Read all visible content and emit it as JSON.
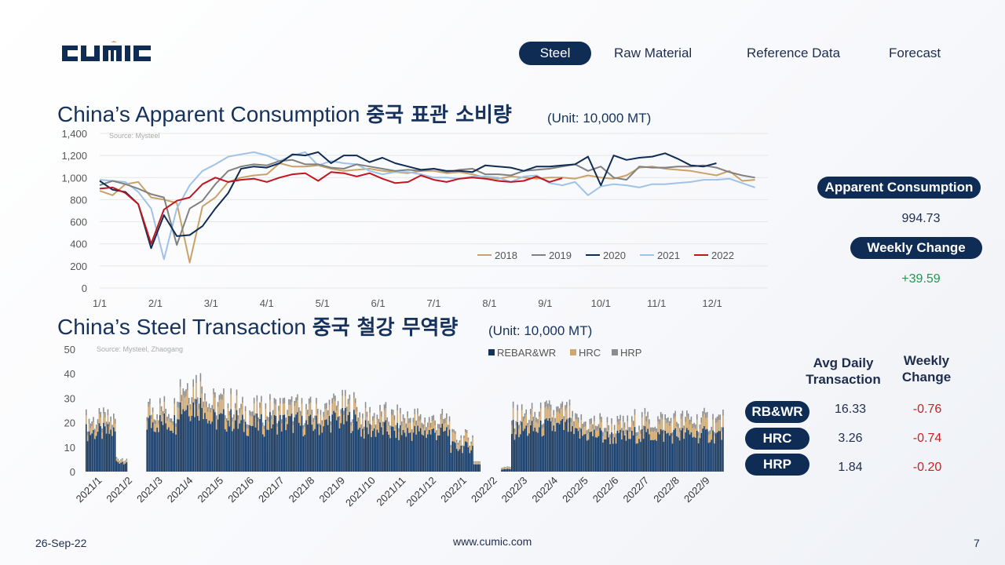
{
  "brand": {
    "name": "CUMIC"
  },
  "nav": {
    "items": [
      "Steel",
      "Raw Material",
      "Reference Data",
      "Forecast"
    ],
    "active": "Steel"
  },
  "section1": {
    "title_en": "China’s Apparent Consumption",
    "title_kr": "중국 표관 소비량",
    "unit": "(Unit: 10,000 MT)"
  },
  "section2": {
    "title_en": "China’s Steel Transaction",
    "title_kr": "중국 철강 무역량",
    "unit": "(Unit: 10,000 MT)"
  },
  "side1": {
    "label1": "Apparent Consumption",
    "value1": "994.73",
    "label2": "Weekly Change",
    "value2": "+39.59"
  },
  "side2": {
    "header_avg": "Avg Daily Transaction",
    "header_change": "Weekly Change",
    "rows": [
      {
        "label": "RB&WR",
        "avg": "16.33",
        "change": "-0.76"
      },
      {
        "label": "HRC",
        "avg": "3.26",
        "change": "-0.74"
      },
      {
        "label": "HRP",
        "avg": "1.84",
        "change": "-0.20"
      }
    ]
  },
  "footer": {
    "date": "26-Sep-22",
    "url": "www.cumic.com",
    "page": "7"
  },
  "colors": {
    "navy": "#0f2c55",
    "s2018": "#c9a26a",
    "s2019": "#808080",
    "s2020": "#0f2c55",
    "s2021": "#9fc3e8",
    "s2022": "#c0161e",
    "rebar": "#0f3460",
    "hrc": "#cfa86f",
    "hrp": "#8c8c8c"
  },
  "chart_data": [
    {
      "type": "line",
      "source": "Source: Mysteel",
      "ylim": [
        0,
        1400
      ],
      "yticks": [
        0,
        200,
        400,
        600,
        800,
        "1,000",
        "1,200",
        "1,400"
      ],
      "x_ticks": [
        "1/1",
        "2/1",
        "3/1",
        "4/1",
        "5/1",
        "6/1",
        "7/1",
        "8/1",
        "9/1",
        "10/1",
        "11/1",
        "12/1"
      ],
      "legend_position": "bottom-right",
      "series": [
        {
          "name": "2018",
          "weeks": [
            1,
            2,
            3,
            4,
            5,
            6,
            7,
            8,
            9,
            10,
            11,
            12,
            13,
            14,
            15,
            16,
            17,
            18,
            19,
            20,
            21,
            22,
            23,
            24,
            25,
            26,
            27,
            28,
            29,
            30,
            31,
            32,
            33,
            34,
            35,
            36,
            37,
            38,
            39,
            40,
            41,
            42,
            43,
            44,
            45,
            46,
            47,
            48,
            49,
            50,
            51,
            52
          ],
          "values": [
            880,
            840,
            940,
            960,
            820,
            800,
            770,
            230,
            740,
            820,
            960,
            1000,
            1020,
            1030,
            1130,
            1100,
            1100,
            1110,
            1080,
            1060,
            1070,
            1080,
            1060,
            1050,
            1040,
            1060,
            1060,
            1040,
            1050,
            1030,
            1000,
            990,
            1010,
            1000,
            990,
            1000,
            1000,
            990,
            1020,
            1000,
            990,
            1020,
            1090,
            1100,
            1080,
            1070,
            1060,
            1040,
            1020,
            1060,
            970,
            980
          ]
        },
        {
          "name": "2019",
          "weeks": [
            1,
            2,
            3,
            4,
            5,
            6,
            7,
            8,
            9,
            10,
            11,
            12,
            13,
            14,
            15,
            16,
            17,
            18,
            19,
            20,
            21,
            22,
            23,
            24,
            25,
            26,
            27,
            28,
            29,
            30,
            31,
            32,
            33,
            34,
            35,
            36,
            37,
            38,
            39,
            40,
            41,
            42,
            43,
            44,
            45,
            46,
            47,
            48,
            49,
            50,
            51,
            52
          ],
          "values": [
            930,
            970,
            940,
            900,
            850,
            820,
            390,
            720,
            790,
            940,
            1060,
            1100,
            1120,
            1110,
            1150,
            1160,
            1120,
            1120,
            1090,
            1080,
            1120,
            1100,
            1080,
            1060,
            1070,
            1060,
            1080,
            1050,
            1070,
            1080,
            1030,
            1030,
            1020,
            1060,
            1070,
            1080,
            1100,
            1120,
            1060,
            1100,
            1000,
            980,
            1100,
            1090,
            1090,
            1100,
            1100,
            1110,
            1090,
            1050,
            1020,
            1000
          ]
        },
        {
          "name": "2020",
          "weeks": [
            1,
            2,
            3,
            4,
            5,
            6,
            7,
            8,
            9,
            10,
            11,
            12,
            13,
            14,
            15,
            16,
            17,
            18,
            19,
            20,
            21,
            22,
            23,
            24,
            25,
            26,
            27,
            28,
            29,
            30,
            31,
            32,
            33,
            34,
            35,
            36,
            37,
            38,
            39,
            40,
            41,
            42,
            43,
            44,
            45,
            46,
            47,
            48,
            49,
            50,
            51,
            52
          ],
          "values": [
            970,
            890,
            870,
            760,
            360,
            660,
            470,
            480,
            560,
            720,
            860,
            1080,
            1100,
            1090,
            1130,
            1210,
            1200,
            1230,
            1130,
            1200,
            1200,
            1140,
            1180,
            1130,
            1100,
            1070,
            1080,
            1060,
            1060,
            1050,
            1110,
            1100,
            1090,
            1060,
            1100,
            1100,
            1110,
            1120,
            1190,
            930,
            1200,
            1160,
            1180,
            1190,
            1220,
            1170,
            1110,
            1100,
            1130,
            null,
            null,
            null
          ]
        },
        {
          "name": "2021",
          "weeks": [
            1,
            2,
            3,
            4,
            5,
            6,
            7,
            8,
            9,
            10,
            11,
            12,
            13,
            14,
            15,
            16,
            17,
            18,
            19,
            20,
            21,
            22,
            23,
            24,
            25,
            26,
            27,
            28,
            29,
            30,
            31,
            32,
            33,
            34,
            35,
            36,
            37,
            38,
            39,
            40,
            41,
            42,
            43,
            44,
            45,
            46,
            47,
            48,
            49,
            50,
            51,
            52
          ],
          "values": [
            980,
            970,
            960,
            870,
            720,
            260,
            720,
            930,
            1060,
            1120,
            1190,
            1210,
            1230,
            1200,
            1150,
            1200,
            1230,
            1110,
            1150,
            1130,
            1120,
            1060,
            1030,
            1050,
            1050,
            1030,
            1000,
            1000,
            990,
            1010,
            1010,
            1000,
            960,
            1010,
            1020,
            950,
            930,
            960,
            840,
            920,
            940,
            930,
            910,
            940,
            940,
            950,
            960,
            980,
            980,
            990,
            950,
            910
          ]
        },
        {
          "name": "2022",
          "weeks": [
            1,
            2,
            3,
            4,
            5,
            6,
            7,
            8,
            9,
            10,
            11,
            12,
            13,
            14,
            15,
            16,
            17,
            18,
            19,
            20,
            21,
            22,
            23,
            24,
            25,
            26,
            27,
            28,
            29,
            30,
            31,
            32,
            33,
            34,
            35,
            36,
            37
          ],
          "values": [
            900,
            910,
            860,
            760,
            400,
            710,
            790,
            820,
            940,
            1000,
            960,
            980,
            990,
            960,
            1000,
            1030,
            1040,
            970,
            1050,
            1040,
            1010,
            1040,
            990,
            950,
            960,
            1020,
            980,
            960,
            990,
            1000,
            990,
            970,
            960,
            970,
            1010,
            960,
            995
          ]
        }
      ]
    },
    {
      "type": "bar",
      "stacked": true,
      "source": "Source: Mysteel, Zhaogang",
      "ylim": [
        0,
        50
      ],
      "yticks": [
        0,
        10,
        20,
        30,
        40,
        50
      ],
      "x_ticks": [
        "2021/1",
        "2021/2",
        "2021/3",
        "2021/4",
        "2021/5",
        "2021/6",
        "2021/7",
        "2021/8",
        "2021/9",
        "2021/10",
        "2021/11",
        "2021/12",
        "2022/1",
        "2022/2",
        "2022/3",
        "2022/4",
        "2022/5",
        "2022/6",
        "2022/7",
        "2022/8",
        "2022/9"
      ],
      "legend": [
        "REBAR&WR",
        "HRC",
        "HRP"
      ],
      "legend_position": "top",
      "monthly_avg": {
        "months": [
          "2021/1",
          "2021/2",
          "2021/3",
          "2021/4",
          "2021/5",
          "2021/6",
          "2021/7",
          "2021/8",
          "2021/9",
          "2021/10",
          "2021/11",
          "2021/12",
          "2022/1",
          "2022/2",
          "2022/3",
          "2022/4",
          "2022/5",
          "2022/6",
          "2022/7",
          "2022/8",
          "2022/9"
        ],
        "REBAR&WR": [
          16,
          4,
          20,
          27,
          21,
          19,
          20,
          19,
          21,
          17,
          16,
          16,
          10,
          1,
          17,
          18,
          15,
          14,
          15,
          15,
          15
        ],
        "HRC": [
          3,
          1,
          4,
          6,
          5,
          4,
          4,
          4,
          4,
          4,
          4,
          3,
          3,
          0.5,
          4,
          4,
          3,
          3,
          4,
          4,
          4
        ],
        "HRP": [
          2,
          0.5,
          2,
          3,
          2,
          2,
          2,
          2,
          2,
          2,
          2,
          2,
          1,
          0.3,
          2,
          2,
          2,
          2,
          2,
          2,
          2
        ]
      }
    }
  ]
}
